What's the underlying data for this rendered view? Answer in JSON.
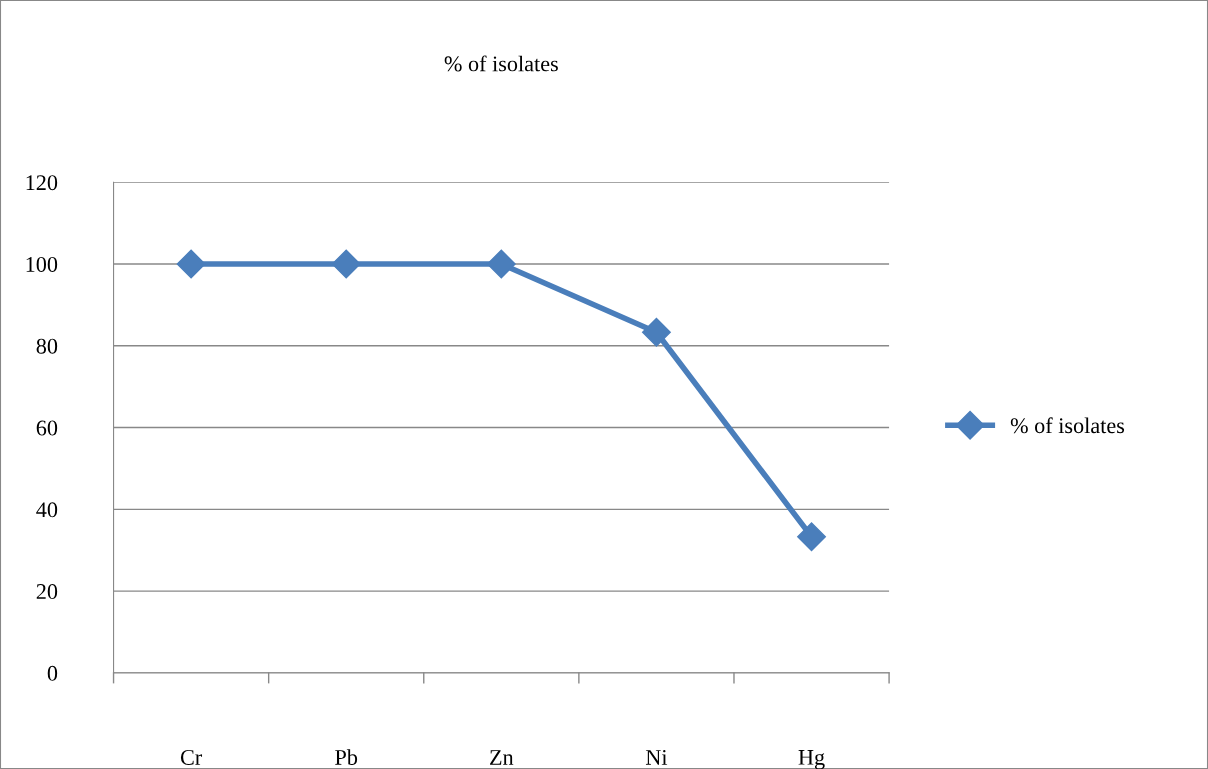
{
  "chart_data": {
    "type": "line",
    "title": "% of isolates",
    "categories": [
      "Cr",
      "Pb",
      "Zn",
      "Ni",
      "Hg"
    ],
    "series": [
      {
        "name": "% of isolates",
        "color": "#4a7ebb",
        "values": [
          100,
          100,
          100,
          83.3,
          33.3
        ]
      }
    ],
    "ylim": [
      0,
      120
    ],
    "yticks": [
      0,
      20,
      40,
      60,
      80,
      100,
      120
    ],
    "grid": "y",
    "legend": "right",
    "marker": "diamond",
    "line_style": "solid"
  }
}
